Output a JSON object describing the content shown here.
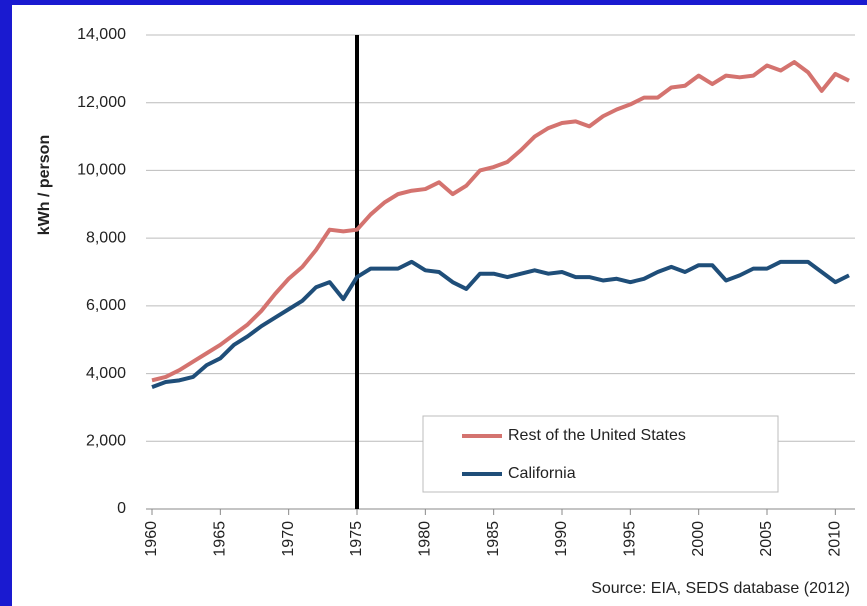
{
  "chart_data": {
    "type": "line",
    "y_label": "kWh / person",
    "source": "Source: EIA, SEDS database (2012)",
    "x": [
      1960,
      1961,
      1962,
      1963,
      1964,
      1965,
      1966,
      1967,
      1968,
      1969,
      1970,
      1971,
      1972,
      1973,
      1974,
      1975,
      1976,
      1977,
      1978,
      1979,
      1980,
      1981,
      1982,
      1983,
      1984,
      1985,
      1986,
      1987,
      1988,
      1989,
      1990,
      1991,
      1992,
      1993,
      1994,
      1995,
      1996,
      1997,
      1998,
      1999,
      2000,
      2001,
      2002,
      2003,
      2004,
      2005,
      2006,
      2007,
      2008,
      2009,
      2010,
      2011
    ],
    "series": [
      {
        "name": "Rest of the United States",
        "color": "#d4736f",
        "values": [
          3800,
          3900,
          4100,
          4350,
          4600,
          4850,
          5150,
          5450,
          5850,
          6350,
          6800,
          7150,
          7650,
          8250,
          8200,
          8250,
          8700,
          9050,
          9300,
          9400,
          9450,
          9650,
          9300,
          9550,
          10000,
          10100,
          10250,
          10600,
          11000,
          11250,
          11400,
          11450,
          11300,
          11600,
          11800,
          11950,
          12150,
          12150,
          12450,
          12500,
          12800,
          12550,
          12800,
          12750,
          12800,
          13100,
          12950,
          13200,
          12900,
          12350,
          12850,
          12650
        ]
      },
      {
        "name": "California",
        "color": "#1f4e79",
        "values": [
          3600,
          3750,
          3800,
          3900,
          4250,
          4450,
          4850,
          5100,
          5400,
          5650,
          5900,
          6150,
          6550,
          6700,
          6200,
          6850,
          7100,
          7100,
          7100,
          7300,
          7050,
          7000,
          6700,
          6500,
          6950,
          6950,
          6850,
          6950,
          7050,
          6950,
          7000,
          6850,
          6850,
          6750,
          6800,
          6700,
          6800,
          7000,
          7150,
          7000,
          7200,
          7200,
          6750,
          6900,
          7100,
          7100,
          7300,
          7300,
          7300,
          7000,
          6700,
          6900
        ]
      }
    ],
    "vline": 1975,
    "xlim": [
      1960,
      2011
    ],
    "xticks": [
      1960,
      1965,
      1970,
      1975,
      1980,
      1985,
      1990,
      1995,
      2000,
      2005,
      2010
    ],
    "ylim": [
      0,
      14000
    ],
    "yticks": [
      0,
      {
        "value": 2000,
        "label": "2,000"
      },
      {
        "value": 4000,
        "label": "4,000"
      },
      {
        "value": 6000,
        "label": "6,000"
      },
      {
        "value": 8000,
        "label": "8,000"
      },
      {
        "value": 10000,
        "label": "10,000"
      },
      {
        "value": 12000,
        "label": "12,000"
      },
      {
        "value": 14000,
        "label": "14,000"
      }
    ],
    "grid": true
  }
}
